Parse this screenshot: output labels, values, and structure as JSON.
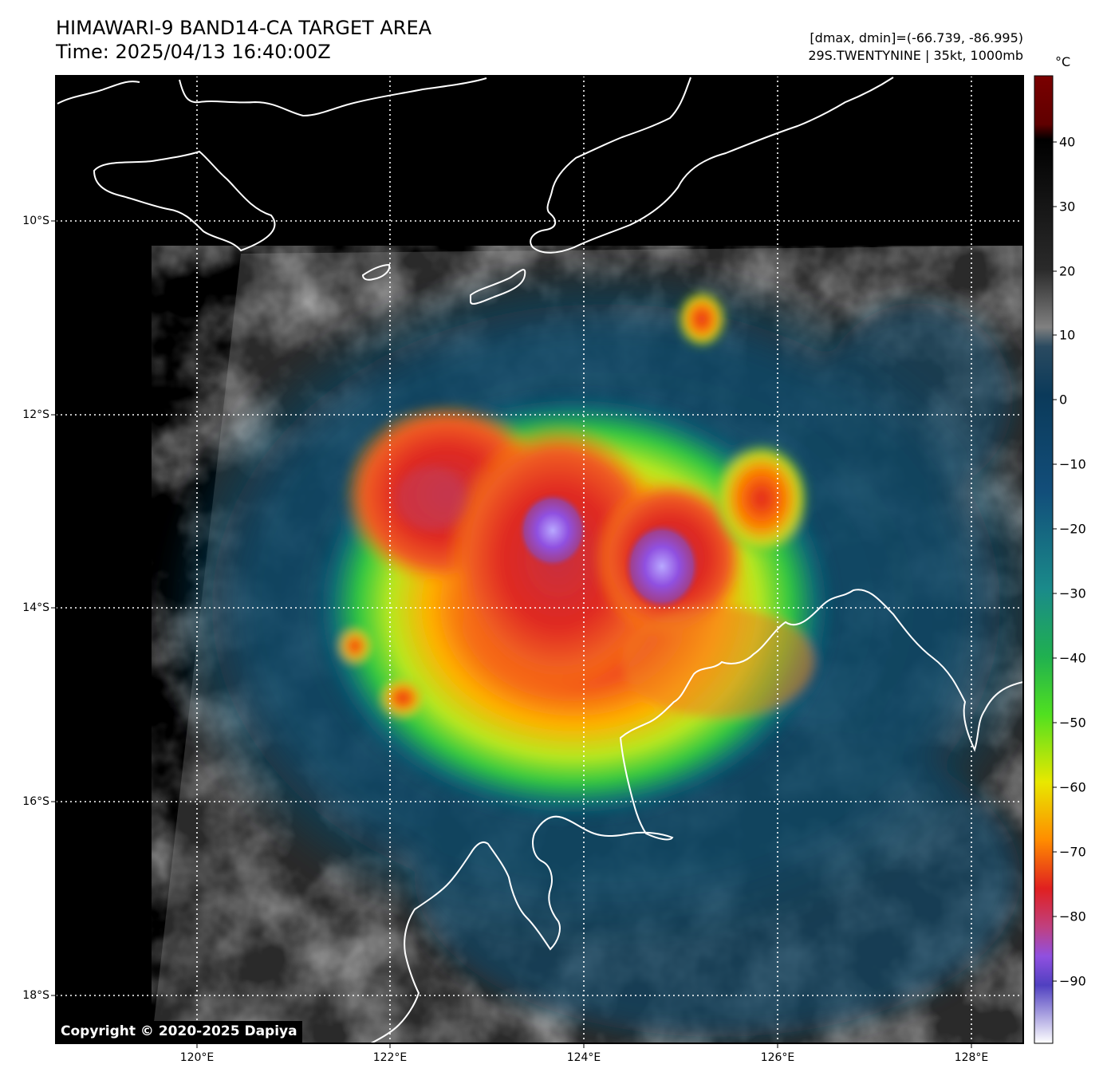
{
  "header": {
    "title_line1": "HIMAWARI-9 BAND14-CA TARGET AREA",
    "title_line2": "Time: 2025/04/13 16:40:00Z",
    "info_line1": "[dmax, dmin]=(-66.739, -86.995)",
    "info_line2": "29S.TWENTYNINE | 35kt, 1000mb"
  },
  "map": {
    "lat_ticks": [
      "10°S",
      "12°S",
      "14°S",
      "16°S",
      "18°S"
    ],
    "lon_ticks": [
      "120°E",
      "122°E",
      "124°E",
      "126°E",
      "128°E"
    ],
    "gridlines": true,
    "coastline_color": "#ffffff"
  },
  "colorbar": {
    "unit": "°C",
    "ticks": [
      "40",
      "30",
      "20",
      "10",
      "0",
      "−10",
      "−20",
      "−30",
      "−40",
      "−50",
      "−60",
      "−70",
      "−80",
      "−90"
    ],
    "colors": {
      "warm_top": "#800000",
      "black": "#000000",
      "gray": "#808080",
      "dark_blue": "#0a3a5a",
      "teal": "#1a8a8a",
      "green": "#30d030",
      "yellow": "#e8e800",
      "orange": "#ff8c00",
      "red": "#e02020",
      "purple": "#9050e0",
      "white": "#ffffff"
    }
  },
  "copyright": "Copyright © 2020-2025 Dapiya"
}
